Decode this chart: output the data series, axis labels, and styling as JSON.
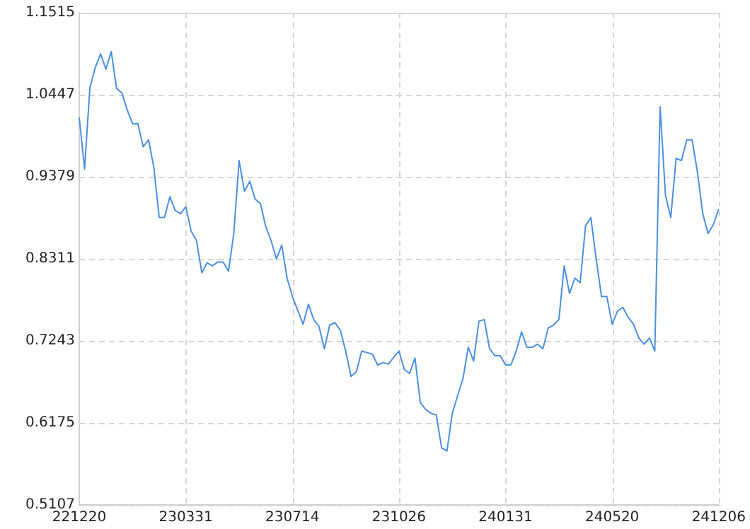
{
  "chart_data": {
    "type": "line",
    "categories": [
      "221220",
      null,
      null,
      null,
      null,
      null,
      null,
      null,
      null,
      null,
      null,
      null,
      null,
      null,
      null,
      null,
      null,
      null,
      null,
      null,
      "230331",
      null,
      null,
      null,
      null,
      null,
      null,
      null,
      null,
      null,
      null,
      null,
      null,
      null,
      null,
      null,
      null,
      null,
      null,
      null,
      "230714",
      null,
      null,
      null,
      null,
      null,
      null,
      null,
      null,
      null,
      null,
      null,
      null,
      null,
      null,
      null,
      null,
      null,
      null,
      null,
      "231026",
      null,
      null,
      null,
      null,
      null,
      null,
      null,
      null,
      null,
      null,
      null,
      null,
      null,
      null,
      null,
      null,
      null,
      null,
      null,
      "240131",
      null,
      null,
      null,
      null,
      null,
      null,
      null,
      null,
      null,
      null,
      null,
      null,
      null,
      null,
      null,
      null,
      null,
      null,
      null,
      "240520",
      null,
      null,
      null,
      null,
      null,
      null,
      null,
      null,
      null,
      null,
      null,
      null,
      null,
      null,
      null,
      null,
      null,
      null,
      null,
      "241206"
    ],
    "series": [
      {
        "color": "#4a8fe0",
        "values": [
          1.015,
          0.948,
          1.054,
          1.08,
          1.098,
          1.078,
          1.101,
          1.053,
          1.047,
          1.025,
          1.007,
          1.007,
          0.977,
          0.986,
          0.95,
          0.885,
          0.885,
          0.912,
          0.894,
          0.89,
          0.899,
          0.867,
          0.855,
          0.813,
          0.826,
          0.822,
          0.827,
          0.827,
          0.815,
          0.864,
          0.959,
          0.919,
          0.932,
          0.909,
          0.903,
          0.873,
          0.855,
          0.831,
          0.849,
          0.806,
          0.782,
          0.764,
          0.746,
          0.772,
          0.752,
          0.743,
          0.714,
          0.745,
          0.748,
          0.738,
          0.711,
          0.678,
          0.684,
          0.711,
          0.709,
          0.707,
          0.693,
          0.696,
          0.694,
          0.703,
          0.711,
          0.687,
          0.682,
          0.702,
          0.644,
          0.635,
          0.63,
          0.628,
          0.585,
          0.581,
          0.63,
          0.653,
          0.675,
          0.716,
          0.698,
          0.75,
          0.752,
          0.714,
          0.705,
          0.705,
          0.693,
          0.693,
          0.711,
          0.736,
          0.716,
          0.716,
          0.72,
          0.714,
          0.741,
          0.745,
          0.752,
          0.822,
          0.786,
          0.806,
          0.8,
          0.874,
          0.885,
          0.831,
          0.782,
          0.782,
          0.746,
          0.763,
          0.768,
          0.755,
          0.746,
          0.728,
          0.72,
          0.728,
          0.711,
          1.029,
          0.914,
          0.885,
          0.962,
          0.959,
          0.986,
          0.986,
          0.944,
          0.89,
          0.864,
          0.876,
          0.896
        ]
      }
    ],
    "ylim": [
      0.5107,
      1.1515
    ],
    "yticks": [
      0.5107,
      0.6175,
      0.7243,
      0.8311,
      0.9379,
      1.0447,
      1.1515
    ],
    "grid": true,
    "legend": false,
    "marker": "none",
    "line_style": "solid"
  }
}
